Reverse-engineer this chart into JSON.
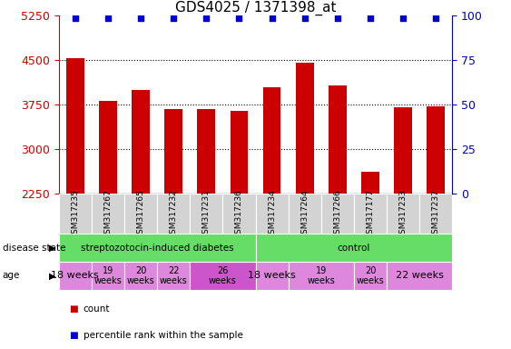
{
  "title": "GDS4025 / 1371398_at",
  "samples": [
    "GSM317235",
    "GSM317267",
    "GSM317265",
    "GSM317232",
    "GSM317231",
    "GSM317236",
    "GSM317234",
    "GSM317264",
    "GSM317266",
    "GSM317177",
    "GSM317233",
    "GSM317237"
  ],
  "counts": [
    4540,
    3820,
    4000,
    3680,
    3680,
    3640,
    4050,
    4460,
    4080,
    2620,
    3700,
    3720
  ],
  "percentiles": [
    100,
    100,
    100,
    100,
    100,
    100,
    100,
    100,
    100,
    100,
    100,
    100
  ],
  "ylim": [
    2250,
    5250
  ],
  "y2lim": [
    0,
    100
  ],
  "yticks": [
    2250,
    3000,
    3750,
    4500,
    5250
  ],
  "y2ticks": [
    0,
    25,
    50,
    75,
    100
  ],
  "bar_color": "#cc0000",
  "percentile_color": "#0000cc",
  "grid_dotted_at": [
    3000,
    3750,
    4500
  ],
  "label_color_left": "#cc0000",
  "label_color_right": "#0000cc",
  "title_fontsize": 11,
  "tick_fontsize": 9,
  "sample_fontsize": 6.5,
  "sample_bg": "#d3d3d3",
  "disease_groups": [
    {
      "label": "streptozotocin-induced diabetes",
      "color": "#66dd66",
      "start": 0,
      "end": 6
    },
    {
      "label": "control",
      "color": "#66dd66",
      "start": 6,
      "end": 12
    }
  ],
  "age_spans": [
    {
      "label": "18 weeks",
      "start": 0,
      "end": 1,
      "color": "#dd88dd",
      "fontsize": 8
    },
    {
      "label": "19\nweeks",
      "start": 1,
      "end": 2,
      "color": "#dd88dd",
      "fontsize": 7
    },
    {
      "label": "20\nweeks",
      "start": 2,
      "end": 3,
      "color": "#dd88dd",
      "fontsize": 7
    },
    {
      "label": "22\nweeks",
      "start": 3,
      "end": 4,
      "color": "#dd88dd",
      "fontsize": 7
    },
    {
      "label": "26\nweeks",
      "start": 4,
      "end": 6,
      "color": "#cc55cc",
      "fontsize": 7
    },
    {
      "label": "18 weeks",
      "start": 6,
      "end": 7,
      "color": "#dd88dd",
      "fontsize": 8
    },
    {
      "label": "19\nweeks",
      "start": 7,
      "end": 9,
      "color": "#dd88dd",
      "fontsize": 7
    },
    {
      "label": "20\nweeks",
      "start": 9,
      "end": 10,
      "color": "#dd88dd",
      "fontsize": 7
    },
    {
      "label": "22 weeks",
      "start": 10,
      "end": 12,
      "color": "#dd88dd",
      "fontsize": 8
    }
  ]
}
